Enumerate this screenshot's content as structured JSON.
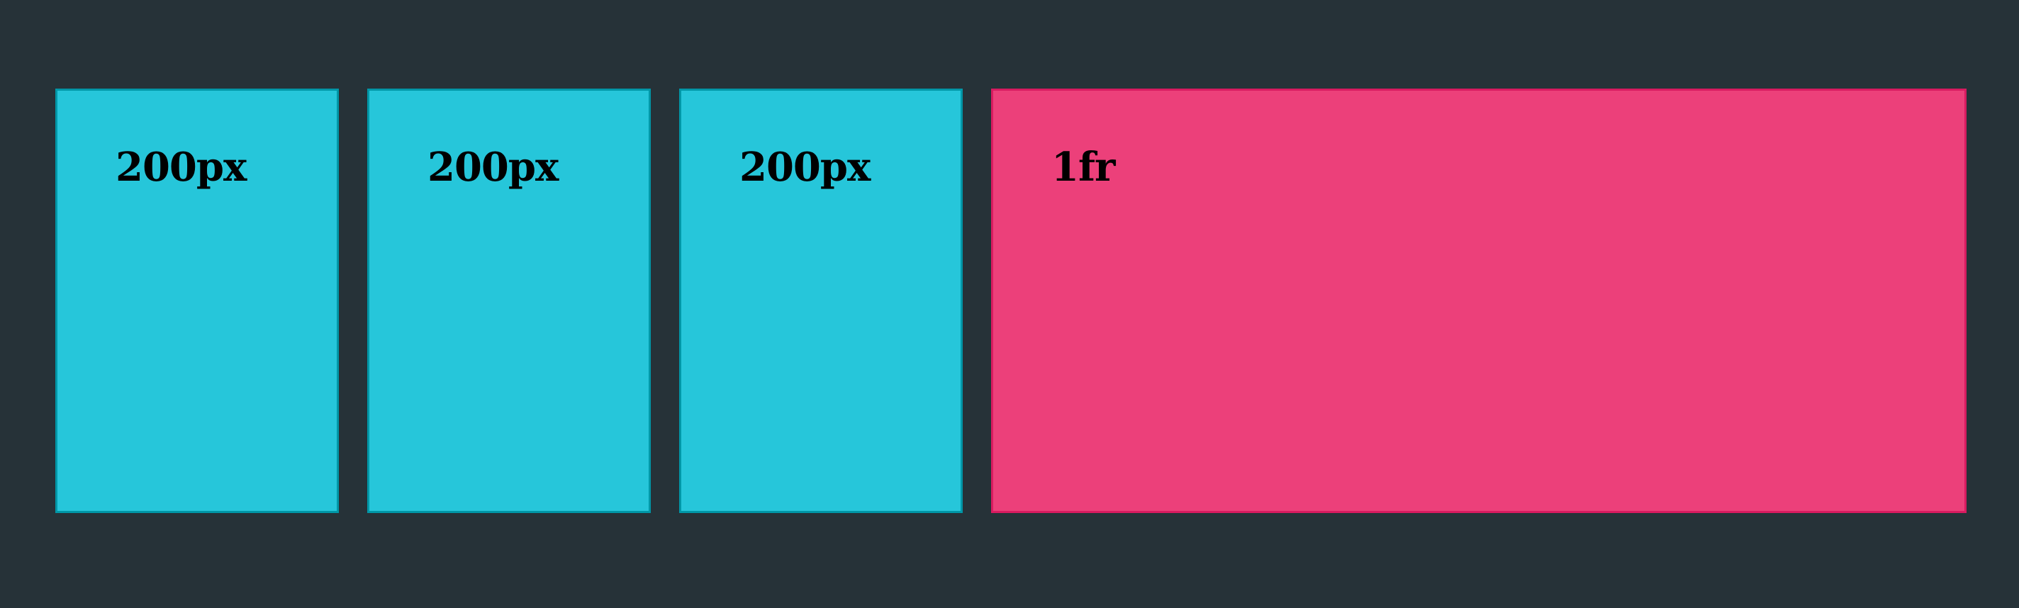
{
  "colors": {
    "background": "#263238",
    "fixed_fill": "#26C6DA",
    "fixed_border": "#0097A7",
    "fraction_fill": "#EC407A",
    "fraction_border": "#D81B60"
  },
  "columns": [
    {
      "label": "200px",
      "kind": "fixed"
    },
    {
      "label": "200px",
      "kind": "fixed"
    },
    {
      "label": "200px",
      "kind": "fixed"
    },
    {
      "label": "1fr",
      "kind": "fraction"
    }
  ]
}
